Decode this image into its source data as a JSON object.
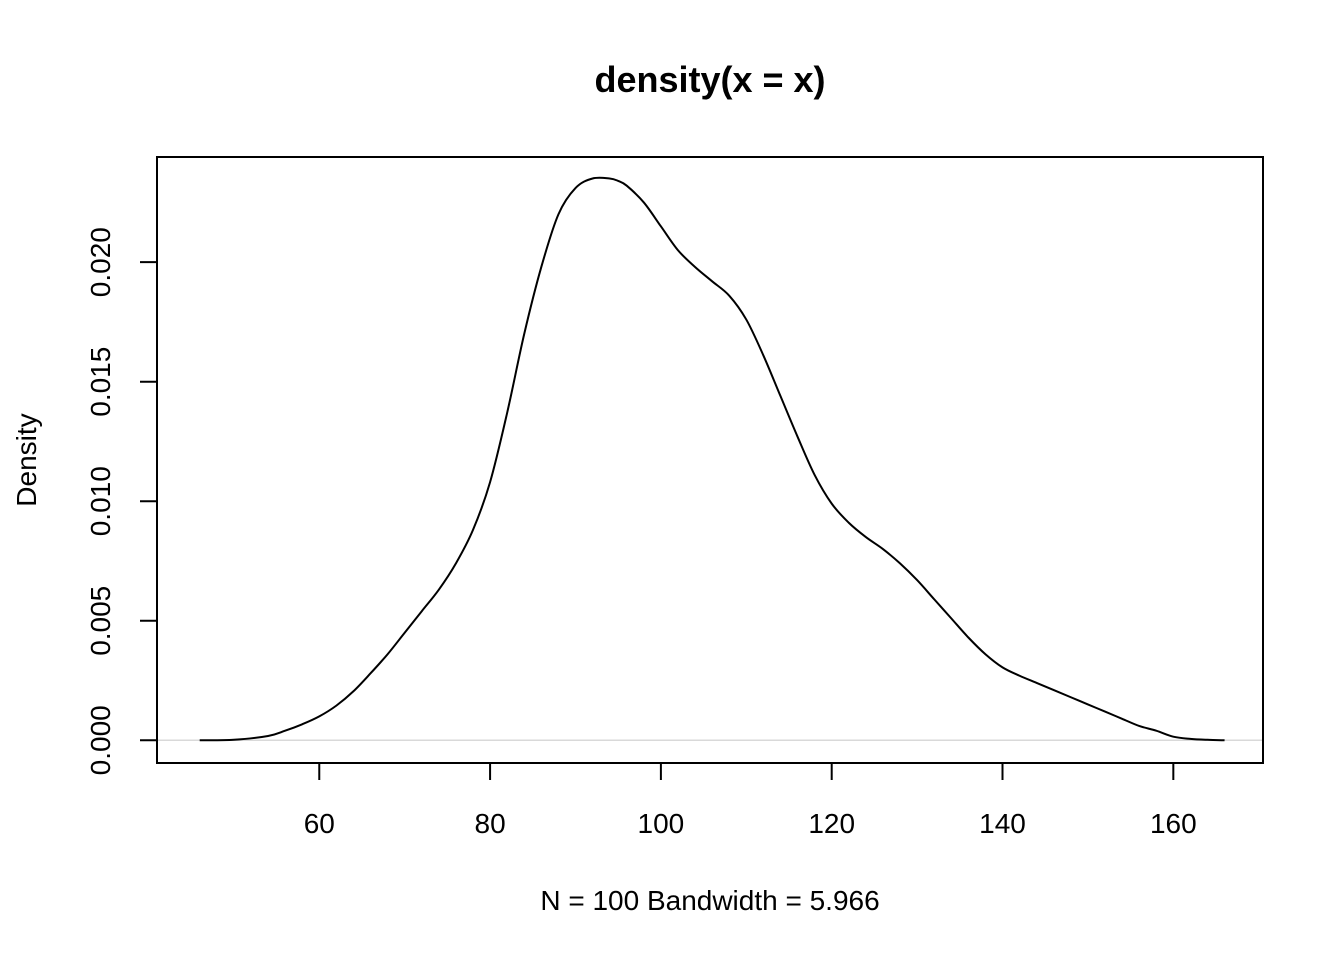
{
  "chart_data": {
    "type": "line",
    "title": "density(x = x)",
    "xlabel": "N = 100   Bandwidth = 5.966",
    "ylabel": "Density",
    "xlim": [
      41,
      170.5
    ],
    "ylim": [
      -0.00095,
      0.0244
    ],
    "x_ticks": [
      60,
      80,
      100,
      120,
      140,
      160
    ],
    "x_tick_labels": [
      "60",
      "80",
      "100",
      "120",
      "140",
      "160"
    ],
    "y_ticks": [
      0.0,
      0.005,
      0.01,
      0.015,
      0.02
    ],
    "y_tick_labels": [
      "0.000",
      "0.005",
      "0.010",
      "0.015",
      "0.020"
    ],
    "zero_line": true,
    "series": [
      {
        "x": [
          46,
          50,
          54,
          56,
          58,
          60,
          62,
          64,
          66,
          68,
          70,
          72,
          74,
          76,
          78,
          80,
          82,
          84,
          86,
          88,
          90,
          92,
          94,
          95,
          96,
          98,
          100,
          102,
          104,
          106,
          108,
          110,
          112,
          114,
          116,
          118,
          120,
          122,
          124,
          126,
          128,
          130,
          132,
          134,
          136,
          138,
          140,
          142,
          144,
          146,
          148,
          150,
          152,
          154,
          156,
          158,
          160,
          162,
          164,
          166
        ],
        "y": [
          0.0,
          2e-05,
          0.00018,
          0.0004,
          0.00067,
          0.001,
          0.00145,
          0.00205,
          0.0028,
          0.0036,
          0.0045,
          0.0054,
          0.0063,
          0.0074,
          0.0088,
          0.0108,
          0.0137,
          0.017,
          0.0198,
          0.022,
          0.0231,
          0.0235,
          0.0235,
          0.0234,
          0.0232,
          0.0225,
          0.0215,
          0.0205,
          0.0198,
          0.0192,
          0.0186,
          0.0176,
          0.0161,
          0.0144,
          0.0127,
          0.0111,
          0.0099,
          0.0091,
          0.0085,
          0.008,
          0.0074,
          0.0067,
          0.0059,
          0.0051,
          0.0043,
          0.0036,
          0.00305,
          0.0027,
          0.0024,
          0.0021,
          0.0018,
          0.0015,
          0.0012,
          0.0009,
          0.0006,
          0.0004,
          0.00015,
          6e-05,
          2e-05,
          0.0
        ]
      }
    ]
  }
}
